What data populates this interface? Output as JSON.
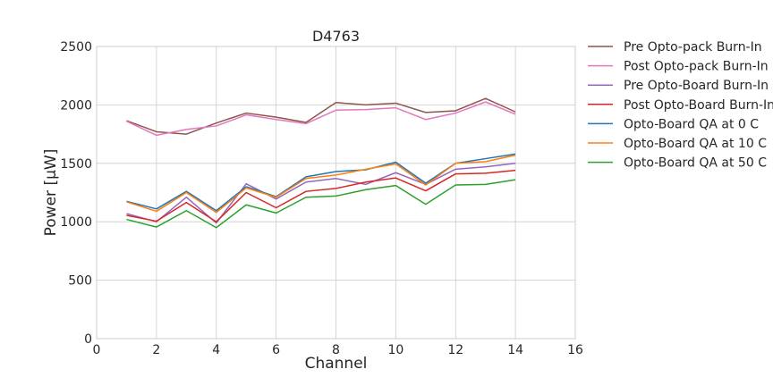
{
  "chart_data": {
    "type": "line",
    "title": "D4763",
    "xlabel": "Channel",
    "ylabel": "Power [μW]",
    "xlim": [
      0,
      16
    ],
    "ylim": [
      0,
      2500
    ],
    "xticks": [
      0,
      2,
      4,
      6,
      8,
      10,
      12,
      14,
      16
    ],
    "yticks": [
      0,
      500,
      1000,
      1500,
      2000,
      2500
    ],
    "grid": true,
    "legend_position": "outside-right-top",
    "x": [
      1,
      2,
      3,
      4,
      5,
      6,
      7,
      8,
      9,
      10,
      11,
      12,
      13,
      14
    ],
    "series": [
      {
        "name": "Pre Opto-pack Burn-In",
        "color": "#8c564b",
        "values": [
          1865,
          1770,
          1750,
          1845,
          1930,
          1895,
          1850,
          2020,
          2000,
          2015,
          1935,
          1950,
          2055,
          1940
        ]
      },
      {
        "name": "Post Opto-pack Burn-In",
        "color": "#e377c2",
        "values": [
          1860,
          1740,
          1790,
          1820,
          1915,
          1875,
          1840,
          1955,
          1960,
          1975,
          1875,
          1930,
          2025,
          1920
        ]
      },
      {
        "name": "Pre Opto-Board Burn-In",
        "color": "#9467bd",
        "values": [
          1070,
          1000,
          1210,
          990,
          1325,
          1195,
          1340,
          1370,
          1320,
          1420,
          1320,
          1450,
          1470,
          1500
        ]
      },
      {
        "name": "Post Opto-Board Burn-In",
        "color": "#d62728",
        "values": [
          1055,
          1005,
          1165,
          1000,
          1250,
          1120,
          1260,
          1285,
          1340,
          1375,
          1265,
          1410,
          1415,
          1440
        ]
      },
      {
        "name": "Opto-Board QA at 0 C",
        "color": "#1f77b4",
        "values": [
          1175,
          1110,
          1260,
          1095,
          1300,
          1215,
          1385,
          1430,
          1445,
          1510,
          1330,
          1500,
          1540,
          1580
        ]
      },
      {
        "name": "Opto-Board QA at 10 C",
        "color": "#ff7f0e",
        "values": [
          1170,
          1090,
          1250,
          1080,
          1290,
          1210,
          1370,
          1400,
          1450,
          1495,
          1315,
          1500,
          1515,
          1570
        ]
      },
      {
        "name": "Opto-Board QA at 50 C",
        "color": "#2ca02c",
        "values": [
          1020,
          955,
          1095,
          950,
          1145,
          1075,
          1210,
          1220,
          1275,
          1310,
          1150,
          1315,
          1320,
          1360
        ]
      }
    ]
  }
}
